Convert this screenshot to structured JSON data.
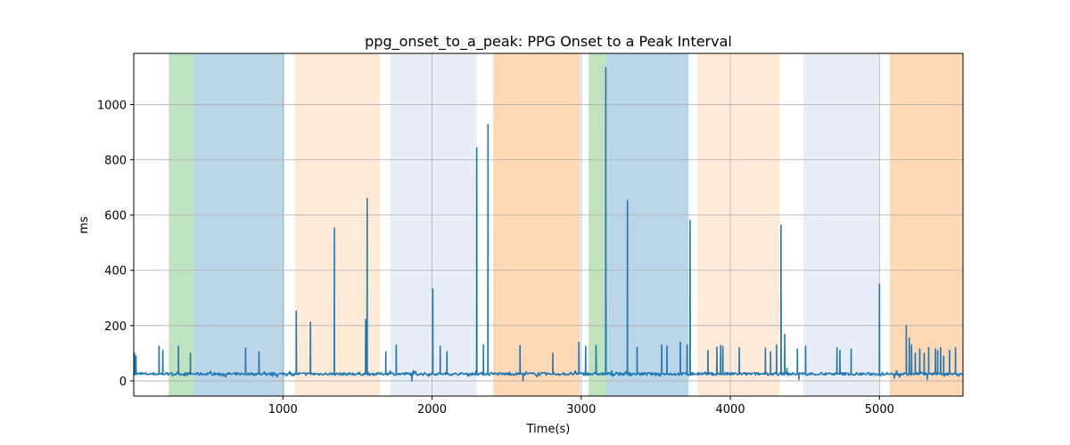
{
  "chart_data": {
    "type": "line",
    "title": "ppg_onset_to_a_peak: PPG Onset to a Peak Interval",
    "xlabel": "Time(s)",
    "ylabel": "ms",
    "xlim": [
      0,
      5560
    ],
    "ylim": [
      -55,
      1185
    ],
    "xticks": [
      1000,
      2000,
      3000,
      4000,
      5000
    ],
    "yticks": [
      0,
      200,
      400,
      600,
      800,
      1000
    ],
    "grid": true,
    "line_color": "#1f77b4",
    "baseline": 25,
    "bands": [
      {
        "start": 235,
        "end": 405,
        "color": "#2ca02c",
        "opacity": 0.3
      },
      {
        "start": 405,
        "end": 1010,
        "color": "#1f77b4",
        "opacity": 0.3
      },
      {
        "start": 1080,
        "end": 1650,
        "color": "#ff7f0e",
        "opacity": 0.16
      },
      {
        "start": 1720,
        "end": 2300,
        "color": "#aec7e8",
        "opacity": 0.3
      },
      {
        "start": 2410,
        "end": 2990,
        "color": "#ff7f0e",
        "opacity": 0.3
      },
      {
        "start": 3050,
        "end": 3170,
        "color": "#2ca02c",
        "opacity": 0.3
      },
      {
        "start": 3170,
        "end": 3720,
        "color": "#1f77b4",
        "opacity": 0.3
      },
      {
        "start": 3780,
        "end": 4330,
        "color": "#ff7f0e",
        "opacity": 0.16
      },
      {
        "start": 4490,
        "end": 5000,
        "color": "#aec7e8",
        "opacity": 0.3
      },
      {
        "start": 5070,
        "end": 5560,
        "color": "#ff7f0e",
        "opacity": 0.3
      }
    ],
    "spikes": [
      {
        "x": 5,
        "y": 100
      },
      {
        "x": 15,
        "y": 90
      },
      {
        "x": 170,
        "y": 125
      },
      {
        "x": 195,
        "y": 110
      },
      {
        "x": 300,
        "y": 125
      },
      {
        "x": 380,
        "y": 100
      },
      {
        "x": 750,
        "y": 118
      },
      {
        "x": 840,
        "y": 105
      },
      {
        "x": 1090,
        "y": 252
      },
      {
        "x": 1185,
        "y": 212
      },
      {
        "x": 1345,
        "y": 553
      },
      {
        "x": 1555,
        "y": 222
      },
      {
        "x": 1565,
        "y": 660
      },
      {
        "x": 1690,
        "y": 105
      },
      {
        "x": 1760,
        "y": 130
      },
      {
        "x": 2005,
        "y": 333
      },
      {
        "x": 2055,
        "y": 125
      },
      {
        "x": 2100,
        "y": 105
      },
      {
        "x": 2300,
        "y": 843
      },
      {
        "x": 2345,
        "y": 130
      },
      {
        "x": 2375,
        "y": 928
      },
      {
        "x": 2590,
        "y": 128
      },
      {
        "x": 2810,
        "y": 100
      },
      {
        "x": 2985,
        "y": 140
      },
      {
        "x": 3030,
        "y": 125
      },
      {
        "x": 3100,
        "y": 128
      },
      {
        "x": 3165,
        "y": 1133
      },
      {
        "x": 3310,
        "y": 653
      },
      {
        "x": 3375,
        "y": 120
      },
      {
        "x": 3540,
        "y": 130
      },
      {
        "x": 3575,
        "y": 125
      },
      {
        "x": 3665,
        "y": 140
      },
      {
        "x": 3710,
        "y": 130
      },
      {
        "x": 3730,
        "y": 580
      },
      {
        "x": 3850,
        "y": 110
      },
      {
        "x": 3910,
        "y": 122
      },
      {
        "x": 3935,
        "y": 128
      },
      {
        "x": 3950,
        "y": 125
      },
      {
        "x": 4060,
        "y": 120
      },
      {
        "x": 4235,
        "y": 118
      },
      {
        "x": 4270,
        "y": 105
      },
      {
        "x": 4310,
        "y": 130
      },
      {
        "x": 4340,
        "y": 563
      },
      {
        "x": 4365,
        "y": 168
      },
      {
        "x": 4380,
        "y": 45
      },
      {
        "x": 4450,
        "y": 115
      },
      {
        "x": 4505,
        "y": 125
      },
      {
        "x": 4715,
        "y": 120
      },
      {
        "x": 4735,
        "y": 110
      },
      {
        "x": 4810,
        "y": 115
      },
      {
        "x": 5000,
        "y": 350
      },
      {
        "x": 5180,
        "y": 200
      },
      {
        "x": 5200,
        "y": 155
      },
      {
        "x": 5215,
        "y": 130
      },
      {
        "x": 5240,
        "y": 100
      },
      {
        "x": 5270,
        "y": 115
      },
      {
        "x": 5300,
        "y": 100
      },
      {
        "x": 5330,
        "y": 120
      },
      {
        "x": 5375,
        "y": 115
      },
      {
        "x": 5390,
        "y": 110
      },
      {
        "x": 5410,
        "y": 120
      },
      {
        "x": 5430,
        "y": 90
      },
      {
        "x": 5470,
        "y": 110
      },
      {
        "x": 5510,
        "y": 120
      }
    ],
    "dips": [
      {
        "x": 1865,
        "y": 0
      },
      {
        "x": 2610,
        "y": 0
      },
      {
        "x": 4460,
        "y": 5
      },
      {
        "x": 5100,
        "y": 10
      },
      {
        "x": 5320,
        "y": 5
      }
    ]
  }
}
